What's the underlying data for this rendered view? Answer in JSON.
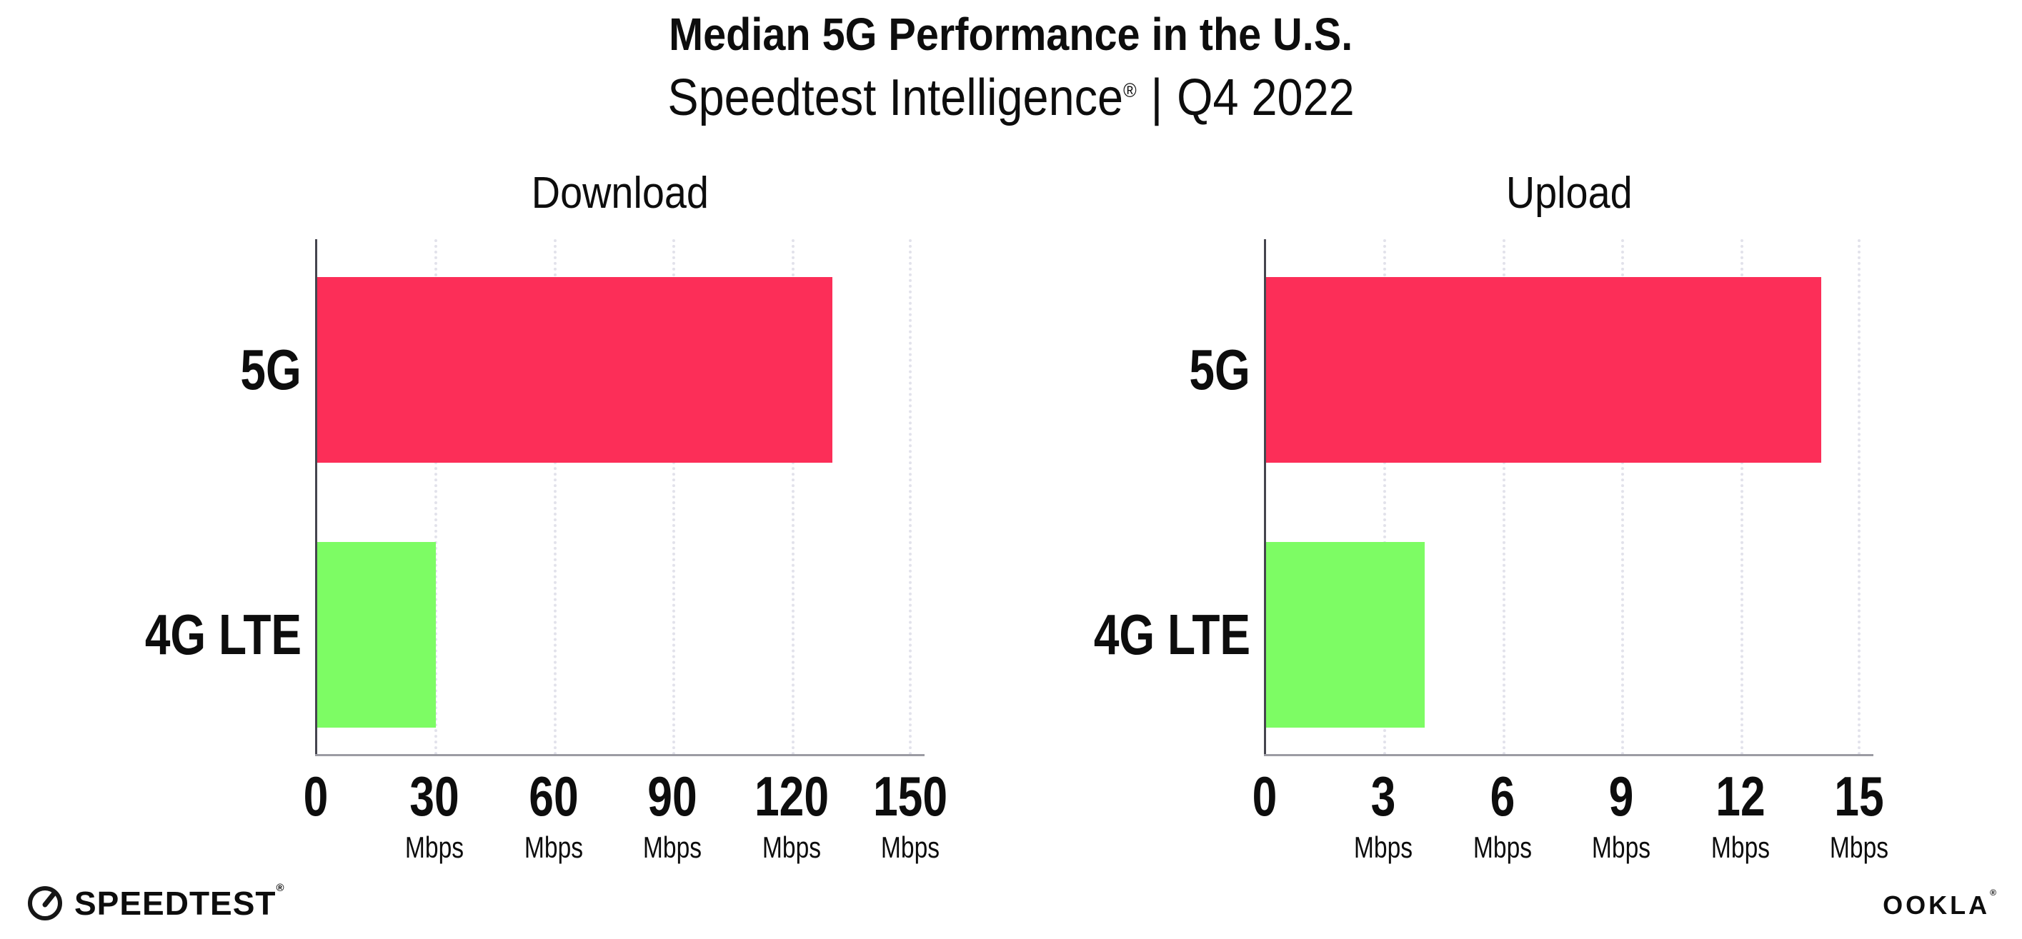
{
  "title": "Median 5G Performance in the U.S.",
  "subtitle": {
    "product": "Speedtest Intelligence",
    "registered_mark": "®",
    "separator": "|",
    "period": "Q4 2022"
  },
  "charts": [
    {
      "title": "Download",
      "categories": [
        "5G",
        "4G LTE"
      ],
      "ticks": [
        {
          "label": "0",
          "unit": ""
        },
        {
          "label": "30",
          "unit": "Mbps"
        },
        {
          "label": "60",
          "unit": "Mbps"
        },
        {
          "label": "90",
          "unit": "Mbps"
        },
        {
          "label": "120",
          "unit": "Mbps"
        },
        {
          "label": "150",
          "unit": "Mbps"
        }
      ]
    },
    {
      "title": "Upload",
      "categories": [
        "5G",
        "4G LTE"
      ],
      "ticks": [
        {
          "label": "0",
          "unit": ""
        },
        {
          "label": "3",
          "unit": "Mbps"
        },
        {
          "label": "6",
          "unit": "Mbps"
        },
        {
          "label": "9",
          "unit": "Mbps"
        },
        {
          "label": "12",
          "unit": "Mbps"
        },
        {
          "label": "15",
          "unit": "Mbps"
        }
      ]
    }
  ],
  "chart_data": [
    {
      "type": "bar",
      "orientation": "horizontal",
      "title": "Download",
      "categories": [
        "5G",
        "4G LTE"
      ],
      "values": [
        130,
        30
      ],
      "unit": "Mbps",
      "xlim": [
        0,
        150
      ],
      "xticks": [
        0,
        30,
        60,
        90,
        120,
        150
      ],
      "colors": [
        "#FC2E58",
        "#7DFC64"
      ],
      "grid": "vertical-dotted",
      "legend": "none"
    },
    {
      "type": "bar",
      "orientation": "horizontal",
      "title": "Upload",
      "categories": [
        "5G",
        "4G LTE"
      ],
      "values": [
        14,
        4
      ],
      "unit": "Mbps",
      "xlim": [
        0,
        15
      ],
      "xticks": [
        0,
        3,
        6,
        9,
        12,
        15
      ],
      "colors": [
        "#FC2E58",
        "#7DFC64"
      ],
      "grid": "vertical-dotted",
      "legend": "none"
    }
  ],
  "footer": {
    "speedtest_wordmark": "SPEEDTEST",
    "speedtest_mark": "®",
    "ookla_wordmark": "OOKLA",
    "ookla_mark": "®"
  },
  "colors": {
    "bar_5g": "#FC2E58",
    "bar_4g_lte": "#7DFC64",
    "axis_spine": "#45454e",
    "axis_line": "#9b9ba3",
    "gridline": "#e2e2eb",
    "text": "#0d0d0d",
    "background": "#ffffff"
  }
}
